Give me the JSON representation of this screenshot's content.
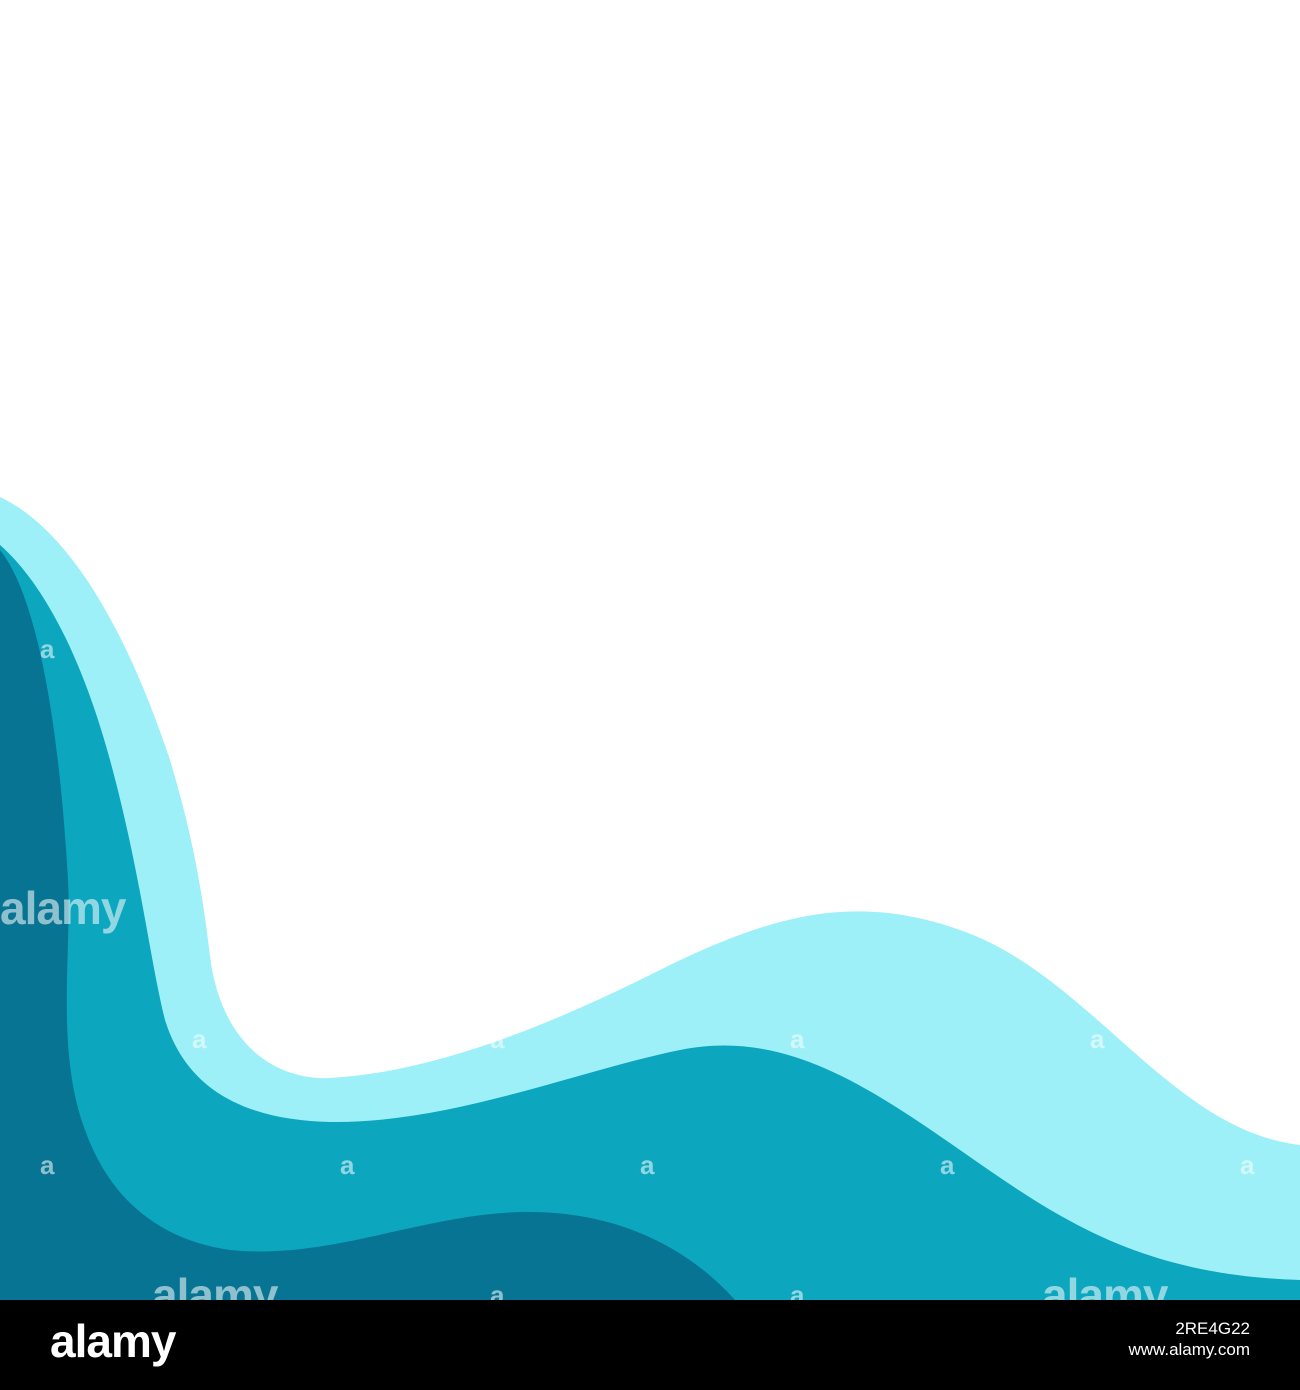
{
  "colors": {
    "background": "#ffffff",
    "wave_light": "#9DF0F8",
    "wave_mid": "#0CA6BF",
    "wave_dark": "#067492",
    "footer_bg": "#000000",
    "footer_text": "#ffffff"
  },
  "watermark": {
    "text": "alamy",
    "small_text": "a"
  },
  "footer": {
    "logo_text": "alamy",
    "image_id": "2RE4G22",
    "site": "www.alamy.com"
  }
}
